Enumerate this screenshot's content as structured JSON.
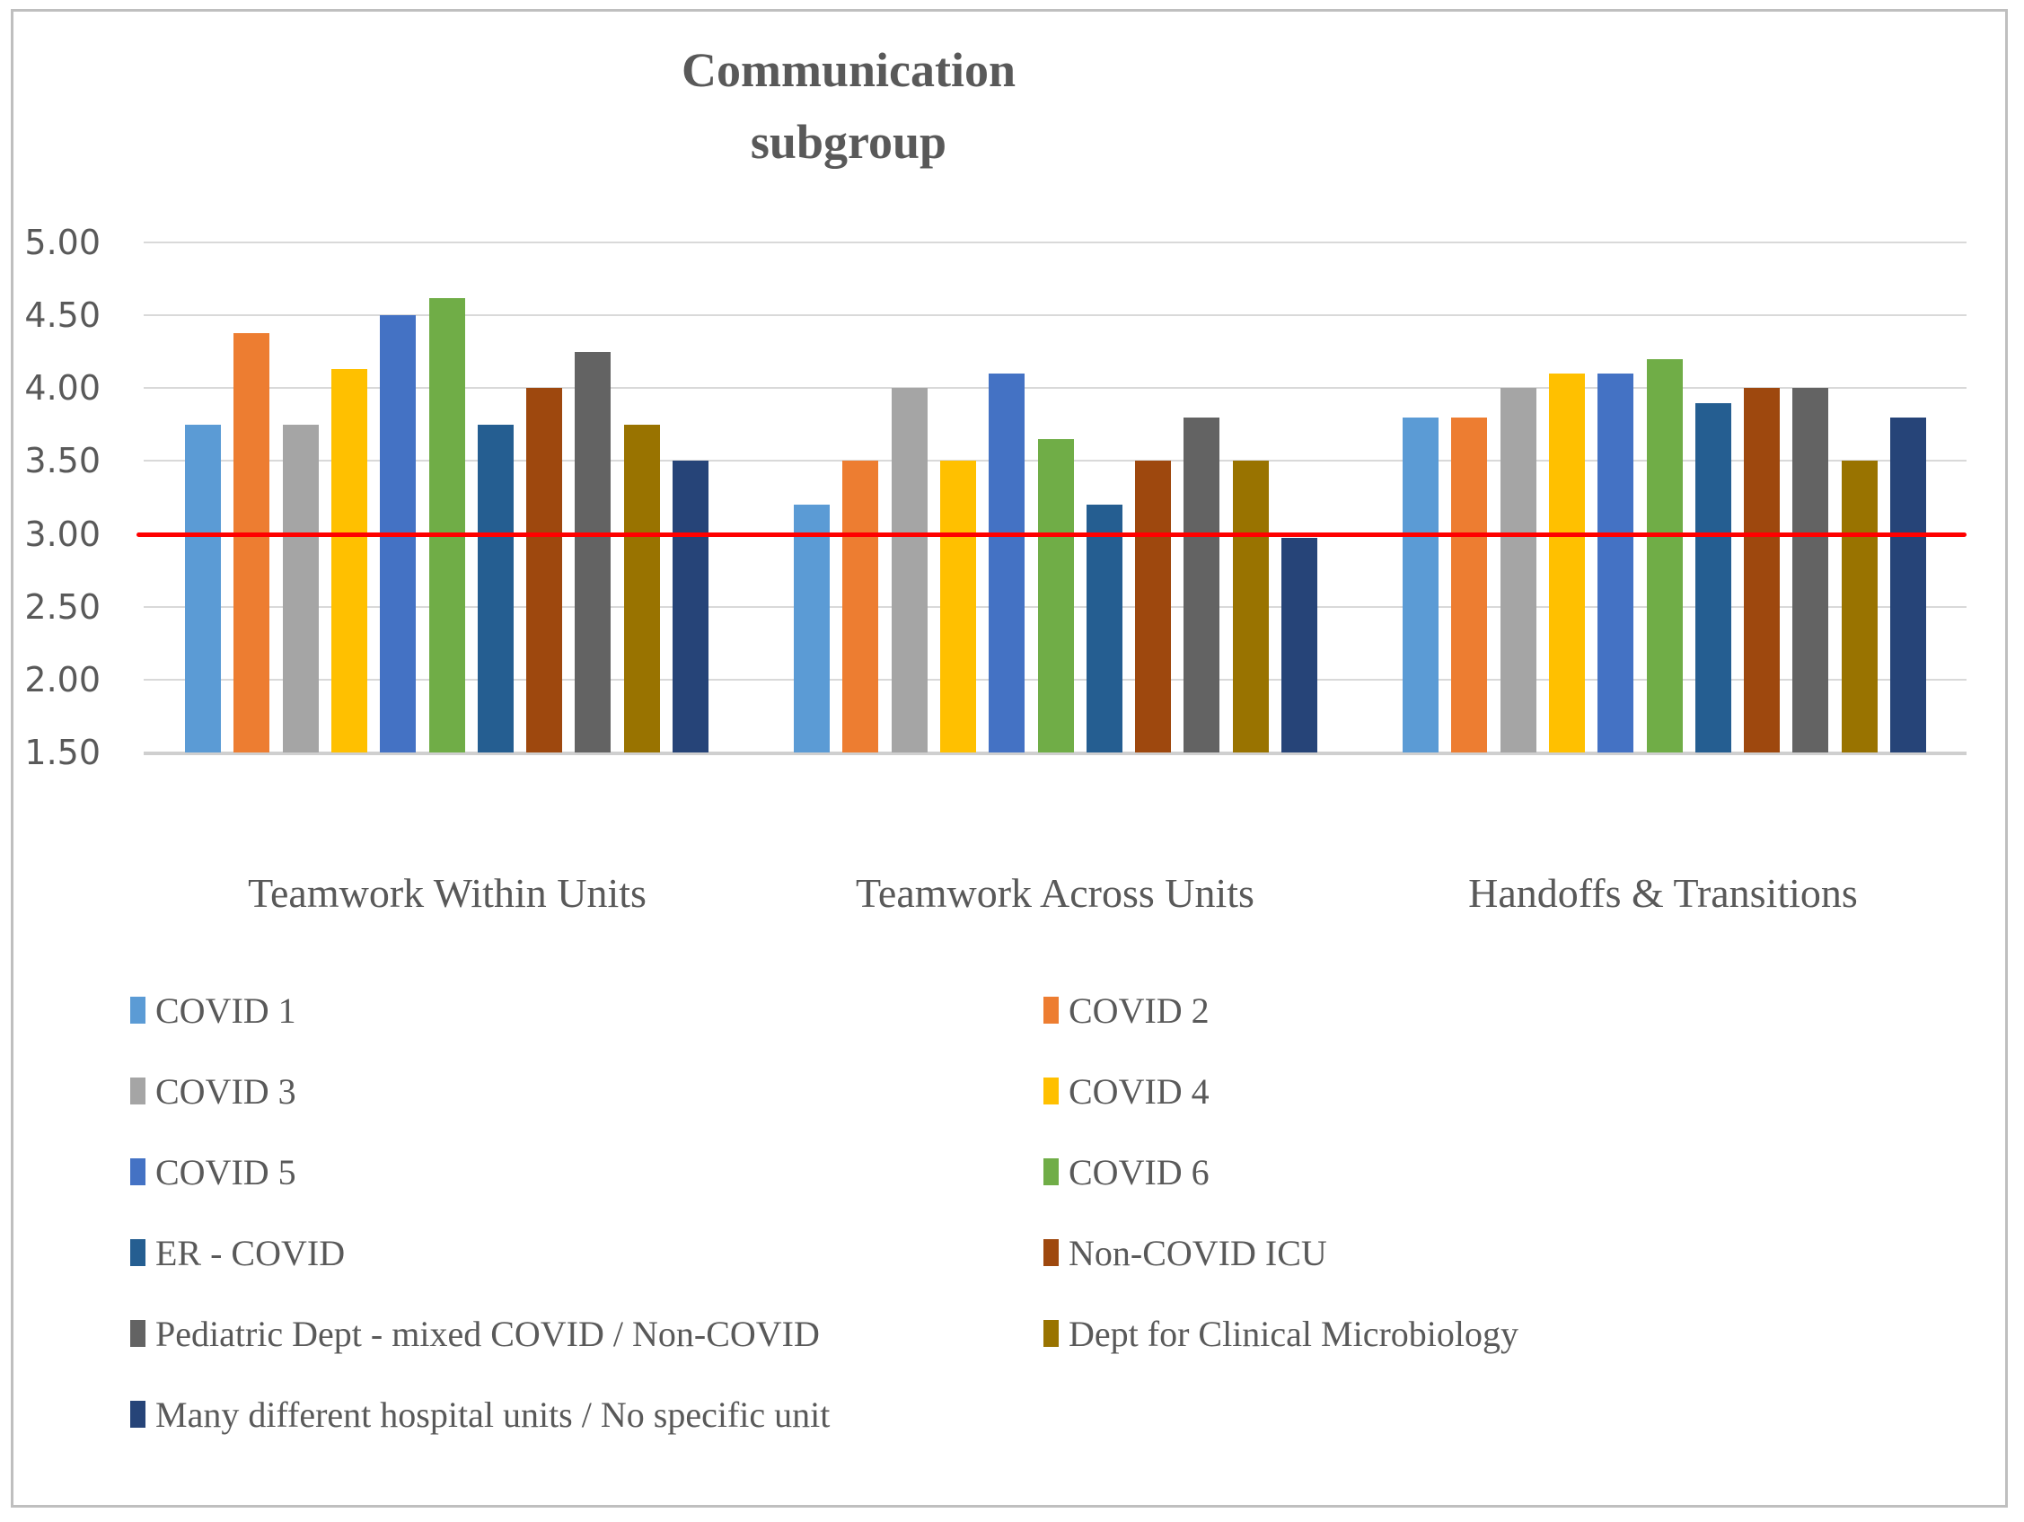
{
  "chart_data": {
    "type": "bar",
    "title_lines": [
      "Communication",
      "subgroup"
    ],
    "categories": [
      "Teamwork Within Units",
      "Teamwork Across Units",
      "Handoffs & Transitions"
    ],
    "series": [
      {
        "name": "COVID 1",
        "color": "#5B9BD5",
        "values": [
          3.75,
          3.2,
          3.8
        ]
      },
      {
        "name": "COVID 2",
        "color": "#ED7D31",
        "values": [
          4.38,
          3.5,
          3.8
        ]
      },
      {
        "name": "COVID 3",
        "color": "#A5A5A5",
        "values": [
          3.75,
          4.0,
          4.0
        ]
      },
      {
        "name": "COVID 4",
        "color": "#FFC000",
        "values": [
          4.13,
          3.5,
          4.1
        ]
      },
      {
        "name": "COVID 5",
        "color": "#4472C4",
        "values": [
          4.5,
          4.1,
          4.1
        ]
      },
      {
        "name": "COVID  6",
        "color": "#70AD47",
        "values": [
          4.62,
          3.65,
          4.2
        ]
      },
      {
        "name": "ER - COVID",
        "color": "#255E91",
        "values": [
          3.75,
          3.2,
          3.9
        ]
      },
      {
        "name": "Non-COVID ICU",
        "color": "#9E480E",
        "values": [
          4.0,
          3.5,
          4.0
        ]
      },
      {
        "name": "Pediatric Dept - mixed COVID / Non-COVID",
        "color": "#636363",
        "values": [
          4.25,
          3.8,
          4.0
        ]
      },
      {
        "name": "Dept for Clinical Microbiology",
        "color": "#997300",
        "values": [
          3.75,
          3.5,
          3.5
        ]
      },
      {
        "name": "Many different hospital units / No specific unit",
        "color": "#264478",
        "values": [
          3.5,
          2.97,
          3.8
        ]
      }
    ],
    "y_ticks": [
      "5.00",
      "4.50",
      "4.00",
      "3.50",
      "3.00",
      "2.50",
      "2.00",
      "1.50"
    ],
    "y_axis": {
      "min": 1.5,
      "max": 5.0,
      "step": 0.5
    },
    "reference_line": {
      "value": 3.0,
      "color": "#FF0000"
    },
    "gridlines": true,
    "legend_position": "bottom-two-columns",
    "palette": {
      "text": "#595959",
      "gridline": "#D9D9D9",
      "frame_border": "#BFBFBF",
      "background": "#FFFFFF"
    }
  }
}
